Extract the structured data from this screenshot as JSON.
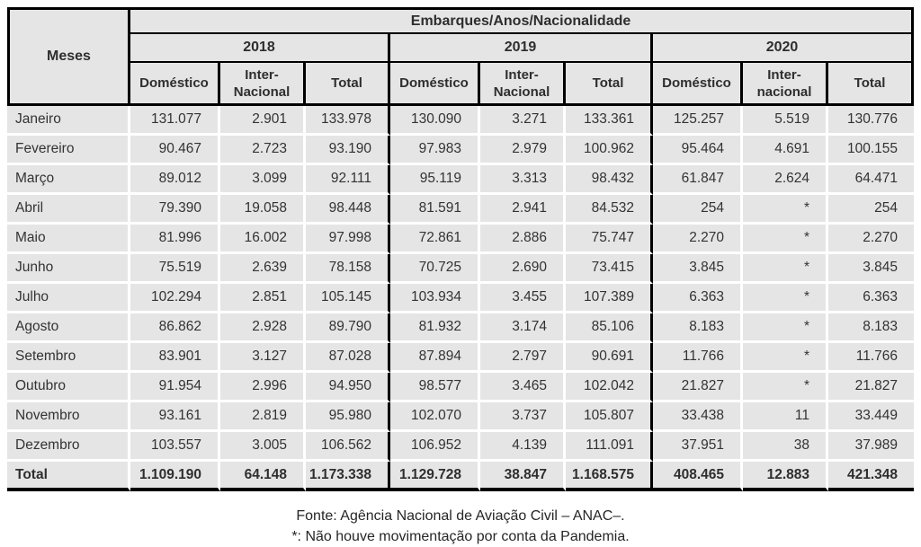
{
  "table": {
    "corner_label": "Meses",
    "title": "Embarques/Anos/Nacionalidade",
    "groups": [
      {
        "year": "2018",
        "cols": [
          [
            "Doméstico"
          ],
          [
            "Inter-",
            "Nacional"
          ],
          [
            "Total"
          ]
        ]
      },
      {
        "year": "2019",
        "cols": [
          [
            "Doméstico"
          ],
          [
            "Inter-",
            "Nacional"
          ],
          [
            "Total"
          ]
        ]
      },
      {
        "year": "2020",
        "cols": [
          [
            "Doméstico"
          ],
          [
            "Inter-",
            "nacional"
          ],
          [
            "Total"
          ]
        ]
      }
    ],
    "rows": [
      {
        "month": "Janeiro",
        "values": [
          "131.077",
          "2.901",
          "133.978",
          "130.090",
          "3.271",
          "133.361",
          "125.257",
          "5.519",
          "130.776"
        ]
      },
      {
        "month": "Fevereiro",
        "values": [
          "90.467",
          "2.723",
          "93.190",
          "97.983",
          "2.979",
          "100.962",
          "95.464",
          "4.691",
          "100.155"
        ]
      },
      {
        "month": "Março",
        "values": [
          "89.012",
          "3.099",
          "92.111",
          "95.119",
          "3.313",
          "98.432",
          "61.847",
          "2.624",
          "64.471"
        ]
      },
      {
        "month": "Abril",
        "values": [
          "79.390",
          "19.058",
          "98.448",
          "81.591",
          "2.941",
          "84.532",
          "254",
          "*",
          "254"
        ]
      },
      {
        "month": "Maio",
        "values": [
          "81.996",
          "16.002",
          "97.998",
          "72.861",
          "2.886",
          "75.747",
          "2.270",
          "*",
          "2.270"
        ]
      },
      {
        "month": "Junho",
        "values": [
          "75.519",
          "2.639",
          "78.158",
          "70.725",
          "2.690",
          "73.415",
          "3.845",
          "*",
          "3.845"
        ]
      },
      {
        "month": "Julho",
        "values": [
          "102.294",
          "2.851",
          "105.145",
          "103.934",
          "3.455",
          "107.389",
          "6.363",
          "*",
          "6.363"
        ]
      },
      {
        "month": "Agosto",
        "values": [
          "86.862",
          "2.928",
          "89.790",
          "81.932",
          "3.174",
          "85.106",
          "8.183",
          "*",
          "8.183"
        ]
      },
      {
        "month": "Setembro",
        "values": [
          "83.901",
          "3.127",
          "87.028",
          "87.894",
          "2.797",
          "90.691",
          "11.766",
          "*",
          "11.766"
        ]
      },
      {
        "month": "Outubro",
        "values": [
          "91.954",
          "2.996",
          "94.950",
          "98.577",
          "3.465",
          "102.042",
          "21.827",
          "*",
          "21.827"
        ]
      },
      {
        "month": "Novembro",
        "values": [
          "93.161",
          "2.819",
          "95.980",
          "102.070",
          "3.737",
          "105.807",
          "33.438",
          "11",
          "33.449"
        ]
      },
      {
        "month": "Dezembro",
        "values": [
          "103.557",
          "3.005",
          "106.562",
          "106.952",
          "4.139",
          "111.091",
          "37.951",
          "38",
          "37.989"
        ]
      }
    ],
    "total_row": {
      "label": "Total",
      "values": [
        "1.109.190",
        "64.148",
        "1.173.338",
        "1.129.728",
        "38.847",
        "1.168.575",
        "408.465",
        "12.883",
        "421.348"
      ]
    }
  },
  "footnotes": {
    "source": "Fonte: Agência Nacional de Aviação Civil – ANAC–.",
    "asterisk": "*: Não houve movimentação por conta da Pandemia."
  }
}
